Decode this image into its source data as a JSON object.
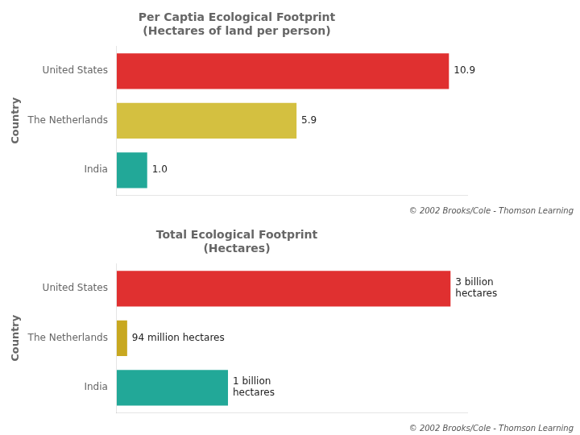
{
  "chart_data": [
    {
      "type": "bar",
      "orientation": "horizontal",
      "title": "Per Captia Ecological Footprint\n(Hectares of land per person)",
      "y_label": "Country",
      "categories": [
        "United States",
        "The Netherlands",
        "India"
      ],
      "values": [
        10.9,
        5.9,
        1.0
      ],
      "value_labels": [
        "10.9",
        "5.9",
        "1.0"
      ],
      "colors": [
        "#e03030",
        "#d4c040",
        "#22a898"
      ],
      "xlim": [
        0,
        11.5
      ],
      "grid": false,
      "legend": false,
      "tick_labels": "y",
      "data_labels": true,
      "annotations": [
        "© 2002 Brooks/Cole - Thomson Learning"
      ]
    },
    {
      "type": "bar",
      "orientation": "horizontal",
      "title": "Total Ecological Footprint\n(Hectares)",
      "y_label": "Country",
      "categories": [
        "United States",
        "The Netherlands",
        "India"
      ],
      "values": [
        3.0,
        0.094,
        1.0
      ],
      "value_labels": [
        "3 billion\nhectares",
        "94 million hectares",
        "1 billion\nhectares"
      ],
      "colors": [
        "#e03030",
        "#c8a820",
        "#22a898"
      ],
      "xlim": [
        0,
        3.15
      ],
      "grid": false,
      "legend": false,
      "tick_labels": "y",
      "data_labels": true,
      "annotations": [
        "© 2002 Brooks/Cole - Thomson Learning"
      ]
    }
  ]
}
